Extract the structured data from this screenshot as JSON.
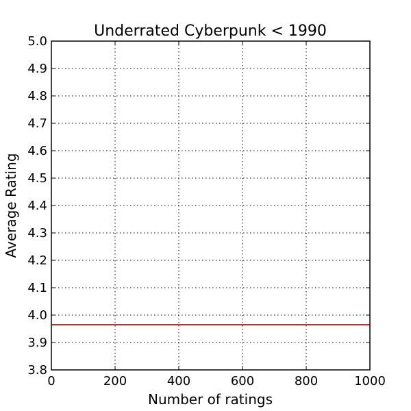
{
  "chart_data": {
    "type": "line",
    "title": "Underrated Cyberpunk < 1990",
    "xlabel": "Number of ratings",
    "ylabel": "Average Rating",
    "xlim": [
      0,
      1000
    ],
    "ylim": [
      3.8,
      5.0
    ],
    "x_ticks": [
      0,
      200,
      400,
      600,
      800,
      1000
    ],
    "x_tick_labels": [
      "0",
      "200",
      "400",
      "600",
      "800",
      "1000"
    ],
    "y_ticks": [
      3.8,
      3.9,
      4.0,
      4.1,
      4.2,
      4.3,
      4.4,
      4.5,
      4.6,
      4.7,
      4.8,
      4.9,
      5.0
    ],
    "y_tick_labels": [
      "3.8",
      "3.9",
      "4.0",
      "4.1",
      "4.2",
      "4.3",
      "4.4",
      "4.5",
      "4.6",
      "4.7",
      "4.8",
      "4.9",
      "5.0"
    ],
    "grid": true,
    "grid_style": "dotted",
    "series": [
      {
        "color": "#d62728",
        "x": [
          0,
          1000
        ],
        "y": [
          3.965,
          3.965
        ]
      }
    ]
  }
}
